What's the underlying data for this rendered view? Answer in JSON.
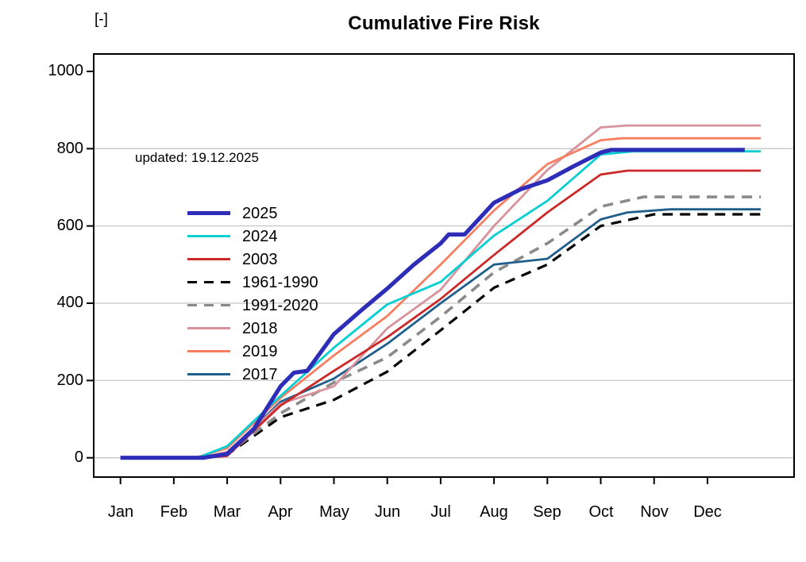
{
  "chart_data": {
    "type": "line",
    "title": "Cumulative Fire Risk",
    "ylabel": "[-]",
    "xlabel": "",
    "annotation": "updated: 19.12.2025",
    "x_tick_labels": [
      "Jan",
      "Feb",
      "Mar",
      "Apr",
      "May",
      "Jun",
      "Jul",
      "Aug",
      "Sep",
      "Oct",
      "Nov",
      "Dec"
    ],
    "y_tick_labels": [
      "0",
      "200",
      "400",
      "600",
      "800",
      "1000"
    ],
    "y_ticks": [
      0,
      200,
      400,
      600,
      800,
      1000
    ],
    "ylim": [
      0,
      1040
    ],
    "x_months_range": [
      0,
      12
    ],
    "grid": "horizontal light gray lines at 0,200,400,600,800",
    "legend_position": "upper-left inside plot",
    "draw_order": [
      3,
      4,
      7,
      5,
      6,
      2,
      1,
      0
    ],
    "series": [
      {
        "name": "2025",
        "color": "#2d2db8",
        "width": 5.2,
        "dash": null,
        "x": [
          0,
          1,
          1.55,
          2,
          2.5,
          3,
          3.25,
          3.5,
          4,
          4.5,
          5,
          5.5,
          6,
          6.15,
          6.45,
          7,
          7.5,
          8,
          8.5,
          9,
          9.2,
          11.7
        ],
        "values": [
          0,
          0,
          0,
          10,
          75,
          185,
          220,
          225,
          320,
          380,
          438,
          500,
          555,
          578,
          578,
          660,
          695,
          718,
          755,
          790,
          797,
          797
        ]
      },
      {
        "name": "2024",
        "color": "#06cfd2",
        "width": 2.8,
        "dash": null,
        "x": [
          0,
          1,
          1.45,
          2,
          3,
          4,
          5,
          6,
          7,
          8,
          9,
          9.6,
          12
        ],
        "values": [
          0,
          0,
          0,
          30,
          160,
          285,
          397,
          455,
          575,
          665,
          785,
          793,
          793
        ]
      },
      {
        "name": "2003",
        "color": "#cc2929",
        "width": 2.8,
        "dash": null,
        "x": [
          0,
          1,
          1.6,
          2,
          3,
          4,
          5,
          6,
          7,
          8,
          9,
          9.5,
          12
        ],
        "values": [
          0,
          0,
          0,
          5,
          135,
          225,
          312,
          411,
          525,
          635,
          733,
          743,
          743
        ]
      },
      {
        "name": "1961-1990",
        "color": "#000000",
        "width": 3.2,
        "dash": "13,9",
        "x": [
          0,
          1,
          1.55,
          2,
          3,
          4,
          5,
          6,
          7,
          8,
          9,
          10,
          12
        ],
        "values": [
          0,
          0,
          0,
          8,
          105,
          150,
          223,
          330,
          440,
          500,
          600,
          630,
          630
        ]
      },
      {
        "name": "1991-2020",
        "color": "#8a8a8a",
        "width": 3.6,
        "dash": "13,9",
        "x": [
          0,
          1,
          1.5,
          2,
          3,
          4,
          5,
          6,
          7,
          8,
          9,
          9.8,
          12
        ],
        "values": [
          0,
          0,
          0,
          10,
          115,
          195,
          260,
          365,
          480,
          555,
          650,
          675,
          675
        ]
      },
      {
        "name": "2018",
        "color": "#d8929c",
        "width": 2.8,
        "dash": null,
        "x": [
          0,
          1,
          1.5,
          2,
          3,
          4,
          5,
          6,
          7,
          8,
          9,
          9.5,
          12
        ],
        "values": [
          0,
          0,
          0,
          15,
          140,
          185,
          335,
          435,
          600,
          745,
          855,
          860,
          860
        ]
      },
      {
        "name": "2019",
        "color": "#f87e62",
        "width": 2.8,
        "dash": null,
        "x": [
          0,
          1,
          1.4,
          2,
          3,
          4,
          5,
          6,
          7,
          8,
          9,
          9.4,
          12
        ],
        "values": [
          0,
          0,
          0,
          25,
          155,
          265,
          367,
          500,
          640,
          760,
          822,
          827,
          827
        ]
      },
      {
        "name": "2017",
        "color": "#205e8c",
        "width": 2.8,
        "dash": null,
        "x": [
          0,
          1,
          1.5,
          2,
          3,
          4,
          5,
          6,
          7,
          8,
          9,
          9.5,
          10.3,
          12
        ],
        "values": [
          0,
          0,
          0,
          10,
          145,
          205,
          295,
          400,
          500,
          515,
          617,
          635,
          643,
          643
        ]
      }
    ]
  },
  "colors": {
    "background": "#ffffff",
    "axis": "#000000",
    "grid": "#c8c8c8",
    "text": "#000000"
  }
}
